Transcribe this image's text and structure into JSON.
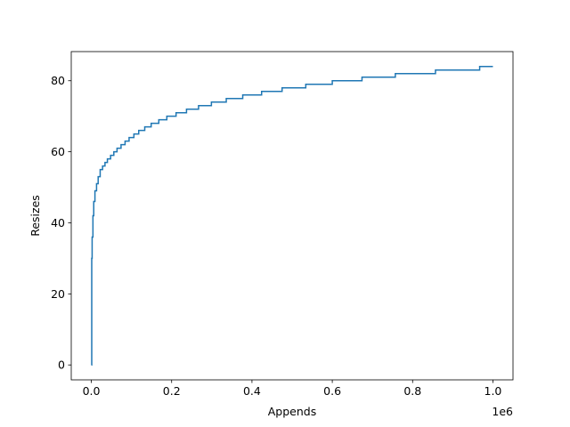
{
  "chart_data": {
    "type": "line",
    "title": "",
    "xlabel": "Appends",
    "ylabel": "Resizes",
    "x_offset_text": "1e6",
    "xlim": [
      -50000,
      1050000
    ],
    "ylim": [
      -4.2,
      88.2
    ],
    "x_ticks": [
      {
        "value": 0,
        "label": "0.0"
      },
      {
        "value": 200000,
        "label": "0.2"
      },
      {
        "value": 400000,
        "label": "0.4"
      },
      {
        "value": 600000,
        "label": "0.6"
      },
      {
        "value": 800000,
        "label": "0.8"
      },
      {
        "value": 1000000,
        "label": "1.0"
      }
    ],
    "y_ticks": [
      {
        "value": 0,
        "label": "0"
      },
      {
        "value": 20,
        "label": "20"
      },
      {
        "value": 40,
        "label": "40"
      },
      {
        "value": 60,
        "label": "60"
      },
      {
        "value": 80,
        "label": "80"
      }
    ],
    "grid": false,
    "series": [
      {
        "color": "#1f77b4",
        "step": true,
        "x": [
          0,
          1000,
          2000,
          4000,
          6000,
          9000,
          13000,
          17000,
          22000,
          28000,
          34000,
          40000,
          48000,
          56000,
          64000,
          74000,
          84000,
          94000,
          106000,
          118000,
          133000,
          149000,
          168000,
          188000,
          211000,
          237000,
          267000,
          299000,
          336000,
          377000,
          424000,
          475000,
          534000,
          600000,
          674000,
          757000,
          857000,
          967000,
          1000000
        ],
        "y": [
          0,
          30,
          36,
          42,
          46,
          49,
          51,
          53,
          55,
          56,
          57,
          58,
          59,
          60,
          61,
          62,
          63,
          64,
          65,
          66,
          67,
          68,
          69,
          70,
          71,
          72,
          73,
          74,
          75,
          76,
          77,
          78,
          79,
          80,
          81,
          82,
          83,
          84,
          84
        ]
      }
    ]
  }
}
